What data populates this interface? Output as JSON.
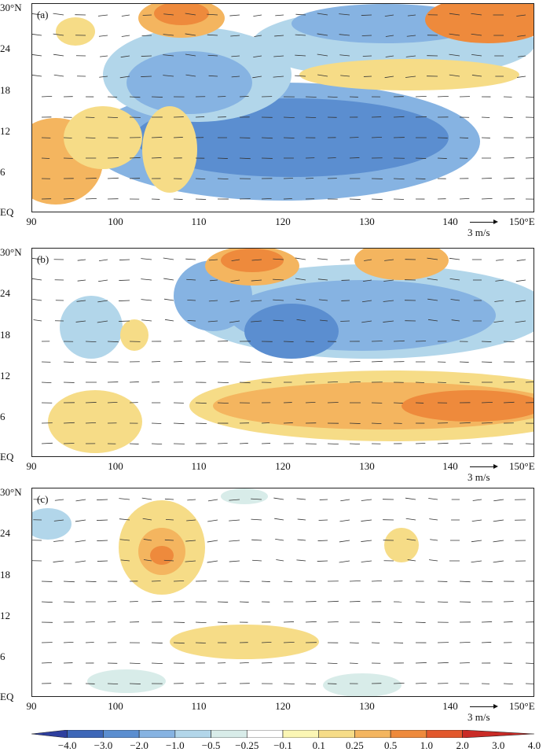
{
  "panels": [
    {
      "label": "(a)"
    },
    {
      "label": "(b)"
    },
    {
      "label": "(c)"
    }
  ],
  "axes": {
    "y_ticks": [
      "30°N",
      "24",
      "18",
      "12",
      "6",
      "EQ"
    ],
    "x_ticks": [
      "90",
      "100",
      "110",
      "120",
      "130",
      "140",
      "150°E"
    ]
  },
  "reference_vector": "3 m/s",
  "colorbar": {
    "labels": [
      "−4.0",
      "−3.0",
      "−2.0",
      "−1.0",
      "−0.5",
      "−0.25",
      "−0.1",
      "0.1",
      "0.25",
      "0.5",
      "1.0",
      "2.0",
      "3.0",
      "4.0"
    ],
    "colors": [
      "#2e3f9e",
      "#3d67b8",
      "#5b8ed0",
      "#86b3e2",
      "#b2d6ea",
      "#d8ece9",
      "#ffffff",
      "#fbf6b4",
      "#f6dc87",
      "#f4b55f",
      "#ee8a3c",
      "#e2582c",
      "#c92b26"
    ]
  }
}
